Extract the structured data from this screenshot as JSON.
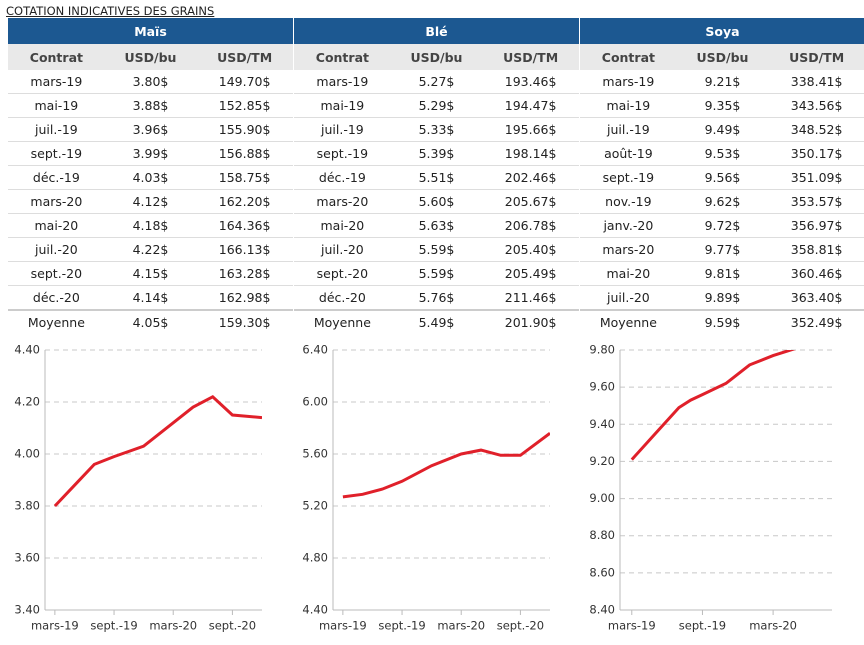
{
  "title": "COTATION INDICATIVES DES GRAINS",
  "tables": [
    {
      "name": "Maïs",
      "columns": [
        "Contrat",
        "USD/bu",
        "USD/TM"
      ],
      "rows": [
        [
          "mars-19",
          "3.80$",
          "149.70$"
        ],
        [
          "mai-19",
          "3.88$",
          "152.85$"
        ],
        [
          "juil.-19",
          "3.96$",
          "155.90$"
        ],
        [
          "sept.-19",
          "3.99$",
          "156.88$"
        ],
        [
          "déc.-19",
          "4.03$",
          "158.75$"
        ],
        [
          "mars-20",
          "4.12$",
          "162.20$"
        ],
        [
          "mai-20",
          "4.18$",
          "164.36$"
        ],
        [
          "juil.-20",
          "4.22$",
          "166.13$"
        ],
        [
          "sept.-20",
          "4.15$",
          "163.28$"
        ],
        [
          "déc.-20",
          "4.14$",
          "162.98$"
        ],
        [
          "Moyenne",
          "4.05$",
          "159.30$"
        ]
      ]
    },
    {
      "name": "Blé",
      "columns": [
        "Contrat",
        "USD/bu",
        "USD/TM"
      ],
      "rows": [
        [
          "mars-19",
          "5.27$",
          "193.46$"
        ],
        [
          "mai-19",
          "5.29$",
          "194.47$"
        ],
        [
          "juil.-19",
          "5.33$",
          "195.66$"
        ],
        [
          "sept.-19",
          "5.39$",
          "198.14$"
        ],
        [
          "déc.-19",
          "5.51$",
          "202.46$"
        ],
        [
          "mars-20",
          "5.60$",
          "205.67$"
        ],
        [
          "mai-20",
          "5.63$",
          "206.78$"
        ],
        [
          "juil.-20",
          "5.59$",
          "205.40$"
        ],
        [
          "sept.-20",
          "5.59$",
          "205.49$"
        ],
        [
          "déc.-20",
          "5.76$",
          "211.46$"
        ],
        [
          "Moyenne",
          "5.49$",
          "201.90$"
        ]
      ]
    },
    {
      "name": "Soya",
      "columns": [
        "Contrat",
        "USD/bu",
        "USD/TM"
      ],
      "rows": [
        [
          "mars-19",
          "9.21$",
          "338.41$"
        ],
        [
          "mai-19",
          "9.35$",
          "343.56$"
        ],
        [
          "juil.-19",
          "9.49$",
          "348.52$"
        ],
        [
          "août-19",
          "9.53$",
          "350.17$"
        ],
        [
          "sept.-19",
          "9.56$",
          "351.09$"
        ],
        [
          "nov.-19",
          "9.62$",
          "353.57$"
        ],
        [
          "janv.-20",
          "9.72$",
          "356.97$"
        ],
        [
          "mars-20",
          "9.77$",
          "358.81$"
        ],
        [
          "mai-20",
          "9.81$",
          "360.46$"
        ],
        [
          "juil.-20",
          "9.89$",
          "363.40$"
        ],
        [
          "Moyenne",
          "9.59$",
          "352.49$"
        ]
      ]
    }
  ],
  "chart_data": [
    {
      "type": "line",
      "color": "#e0202a",
      "grid": true,
      "x": [
        "2019-03",
        "2019-05",
        "2019-07",
        "2019-09",
        "2019-12",
        "2020-03",
        "2020-05",
        "2020-07",
        "2020-09",
        "2020-12"
      ],
      "values": [
        3.8,
        3.88,
        3.96,
        3.99,
        4.03,
        4.12,
        4.18,
        4.22,
        4.15,
        4.14
      ],
      "xlim": [
        "2019-02",
        "2020-12"
      ],
      "ylim": [
        3.4,
        4.4
      ],
      "yticks": [
        {
          "value": 3.4,
          "label": "3.40"
        },
        {
          "value": 3.6,
          "label": "3.60"
        },
        {
          "value": 3.8,
          "label": "3.80"
        },
        {
          "value": 4.0,
          "label": "4.00"
        },
        {
          "value": 4.2,
          "label": "4.20"
        },
        {
          "value": 4.4,
          "label": "4.40"
        }
      ],
      "xticks": [
        {
          "value": "2019-03",
          "label": "mars-19"
        },
        {
          "value": "2019-09",
          "label": "sept.-19"
        },
        {
          "value": "2020-03",
          "label": "mars-20"
        },
        {
          "value": "2020-09",
          "label": "sept.-20"
        }
      ]
    },
    {
      "type": "line",
      "color": "#e0202a",
      "grid": true,
      "x": [
        "2019-03",
        "2019-05",
        "2019-07",
        "2019-09",
        "2019-12",
        "2020-03",
        "2020-05",
        "2020-07",
        "2020-09",
        "2020-12"
      ],
      "values": [
        5.27,
        5.29,
        5.33,
        5.39,
        5.51,
        5.6,
        5.63,
        5.59,
        5.59,
        5.76
      ],
      "xlim": [
        "2019-02",
        "2020-12"
      ],
      "ylim": [
        4.4,
        6.4
      ],
      "yticks": [
        {
          "value": 4.4,
          "label": "4.40"
        },
        {
          "value": 4.8,
          "label": "4.80"
        },
        {
          "value": 5.2,
          "label": "5.20"
        },
        {
          "value": 5.6,
          "label": "5.60"
        },
        {
          "value": 6.0,
          "label": "6.00"
        },
        {
          "value": 6.4,
          "label": "6.40"
        }
      ],
      "xticks": [
        {
          "value": "2019-03",
          "label": "mars-19"
        },
        {
          "value": "2019-09",
          "label": "sept.-19"
        },
        {
          "value": "2020-03",
          "label": "mars-20"
        },
        {
          "value": "2020-09",
          "label": "sept.-20"
        }
      ]
    },
    {
      "type": "line",
      "color": "#e0202a",
      "grid": true,
      "x": [
        "2019-03",
        "2019-05",
        "2019-07",
        "2019-08",
        "2019-09",
        "2019-11",
        "2020-01",
        "2020-03",
        "2020-05",
        "2020-07"
      ],
      "values": [
        9.21,
        9.35,
        9.49,
        9.53,
        9.56,
        9.62,
        9.72,
        9.77,
        9.81,
        9.89
      ],
      "xlim": [
        "2019-02",
        "2020-08"
      ],
      "ylim": [
        8.4,
        9.8
      ],
      "yticks": [
        {
          "value": 8.4,
          "label": "8.40"
        },
        {
          "value": 8.6,
          "label": "8.60"
        },
        {
          "value": 8.8,
          "label": "8.80"
        },
        {
          "value": 9.0,
          "label": "9.00"
        },
        {
          "value": 9.2,
          "label": "9.20"
        },
        {
          "value": 9.4,
          "label": "9.40"
        },
        {
          "value": 9.6,
          "label": "9.60"
        },
        {
          "value": 9.8,
          "label": "9.80"
        }
      ],
      "xticks": [
        {
          "value": "2019-03",
          "label": "mars-19"
        },
        {
          "value": "2019-09",
          "label": "sept.-19"
        },
        {
          "value": "2020-03",
          "label": "mars-20"
        }
      ]
    }
  ]
}
